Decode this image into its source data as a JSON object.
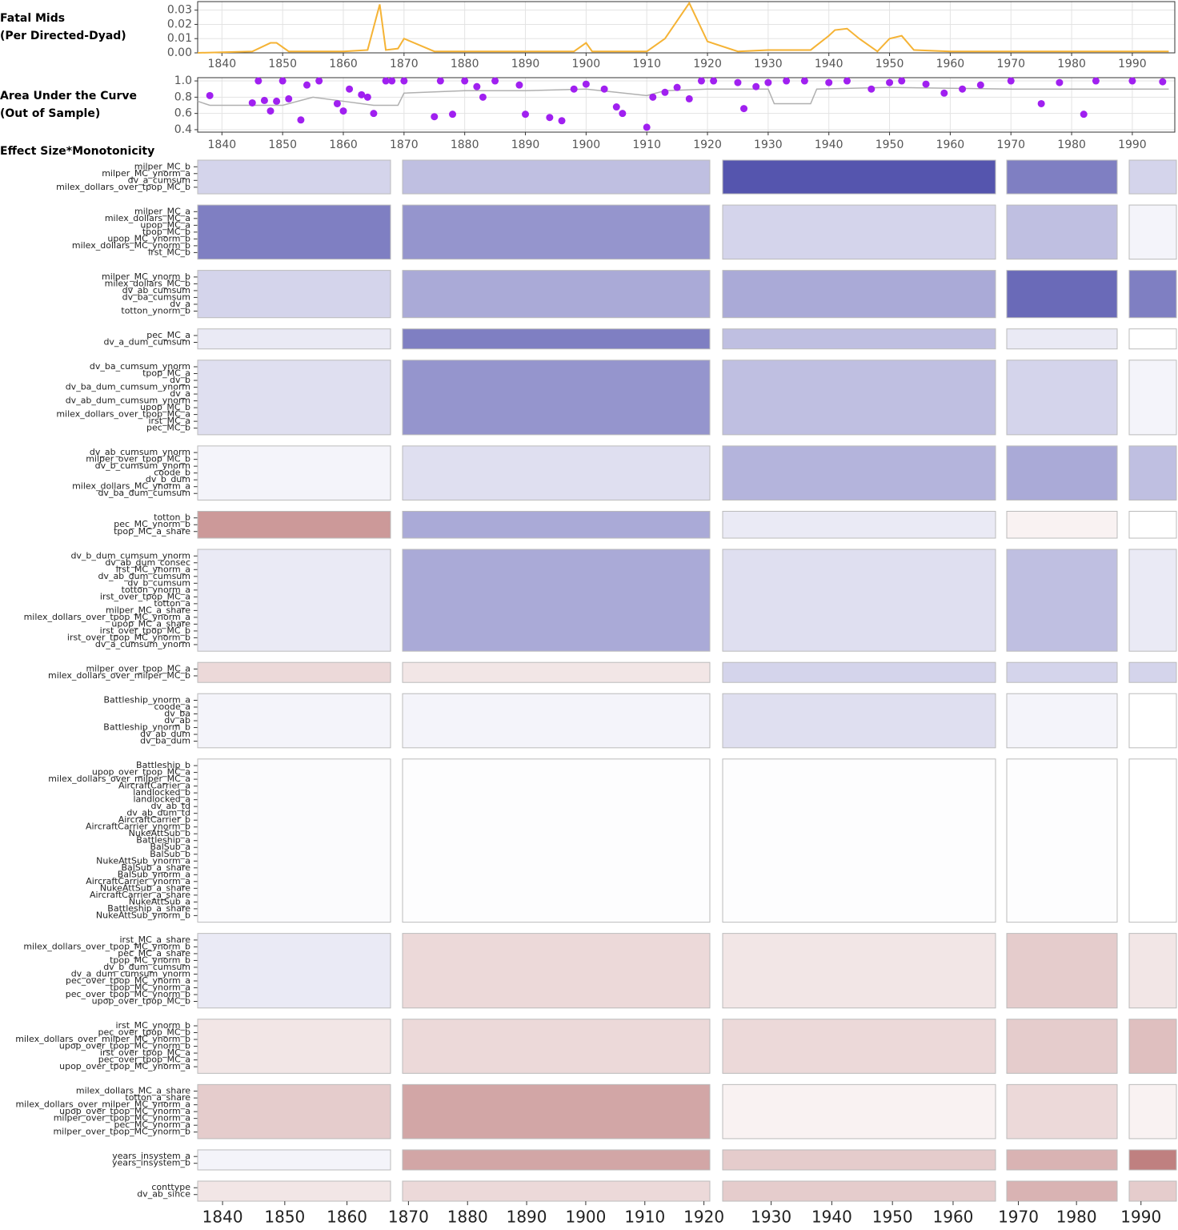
{
  "chart_data": [
    {
      "type": "line",
      "title": [
        "Fatal Mids",
        "(Per Directed-Dyad)"
      ],
      "color": "#f5b335",
      "grid": true,
      "x": [
        1836,
        1845,
        1848,
        1849,
        1851,
        1860,
        1864,
        1866,
        1867,
        1869,
        1870,
        1875,
        1880,
        1890,
        1898,
        1900,
        1901,
        1905,
        1910,
        1913,
        1917,
        1920,
        1925,
        1930,
        1937,
        1940,
        1941,
        1943,
        1945,
        1948,
        1950,
        1952,
        1954,
        1960,
        1970,
        1980,
        1990,
        1996
      ],
      "values": [
        0,
        0.001,
        0.007,
        0.007,
        0.001,
        0.001,
        0.002,
        0.034,
        0.002,
        0.003,
        0.01,
        0.001,
        0.001,
        0.001,
        0.001,
        0.007,
        0.001,
        0.001,
        0.001,
        0.01,
        0.035,
        0.008,
        0.001,
        0.002,
        0.002,
        0.012,
        0.016,
        0.017,
        0.01,
        0.001,
        0.01,
        0.012,
        0.002,
        0.001,
        0.001,
        0.001,
        0.001,
        0.001
      ],
      "xlim": [
        1836,
        1997
      ],
      "xticks": [
        1840,
        1850,
        1860,
        1870,
        1880,
        1890,
        1900,
        1910,
        1920,
        1930,
        1940,
        1950,
        1960,
        1970,
        1980,
        1990
      ],
      "ylim": [
        0,
        0.036
      ],
      "yticks": [
        {
          "value": 0,
          "label": "0.00"
        },
        {
          "value": 0.01,
          "label": "0.01"
        },
        {
          "value": 0.02,
          "label": "0.02"
        },
        {
          "value": 0.03,
          "label": "0.03"
        }
      ]
    },
    {
      "type": "scatter",
      "title": [
        "Area Under the Curve",
        "(Out of Sample)"
      ],
      "color": "#a020f0",
      "line_color": "#b0b0b0",
      "grid": true,
      "x": [
        1838,
        1845,
        1846,
        1847,
        1848,
        1849,
        1850,
        1851,
        1853,
        1854,
        1856,
        1859,
        1860,
        1861,
        1863,
        1864,
        1865,
        1867,
        1868,
        1870,
        1875,
        1876,
        1878,
        1880,
        1882,
        1883,
        1885,
        1889,
        1890,
        1894,
        1896,
        1898,
        1900,
        1903,
        1905,
        1906,
        1910,
        1911,
        1913,
        1915,
        1917,
        1919,
        1921,
        1925,
        1926,
        1928,
        1930,
        1933,
        1936,
        1940,
        1943,
        1947,
        1950,
        1952,
        1956,
        1959,
        1962,
        1965,
        1970,
        1975,
        1978,
        1982,
        1984,
        1990,
        1995
      ],
      "values": [
        0.82,
        0.73,
        1.0,
        0.76,
        0.63,
        0.75,
        1.0,
        0.78,
        0.52,
        0.95,
        1.0,
        0.72,
        0.63,
        0.9,
        0.83,
        0.8,
        0.6,
        1.0,
        1.0,
        1.0,
        0.56,
        1.0,
        0.59,
        1.0,
        0.93,
        0.8,
        1.0,
        0.95,
        0.59,
        0.55,
        0.51,
        0.9,
        0.96,
        0.9,
        0.68,
        0.6,
        0.43,
        0.8,
        0.86,
        0.92,
        0.78,
        1.0,
        1.0,
        0.98,
        0.66,
        0.93,
        0.98,
        1.0,
        1.0,
        0.98,
        1.0,
        0.9,
        0.98,
        1.0,
        0.96,
        0.85,
        0.9,
        0.95,
        1.0,
        0.72,
        0.98,
        0.59,
        1.0,
        1.0,
        0.99
      ],
      "line_x": [
        1836,
        1838,
        1845,
        1850,
        1855,
        1860,
        1865,
        1869,
        1870,
        1880,
        1890,
        1900,
        1910,
        1913,
        1920,
        1930,
        1931,
        1937,
        1938,
        1950,
        1970,
        1996
      ],
      "line_values": [
        0.75,
        0.7,
        0.7,
        0.7,
        0.8,
        0.75,
        0.7,
        0.7,
        0.85,
        0.88,
        0.88,
        0.9,
        0.82,
        0.88,
        0.9,
        0.9,
        0.72,
        0.72,
        0.9,
        0.92,
        0.9,
        0.9
      ],
      "xlim": [
        1836,
        1997
      ],
      "xticks": [
        1840,
        1850,
        1860,
        1870,
        1880,
        1890,
        1900,
        1910,
        1920,
        1930,
        1940,
        1950,
        1960,
        1970,
        1980,
        1990
      ],
      "ylim": [
        0.37,
        1.04
      ],
      "yticks": [
        0.4,
        0.6,
        0.8,
        {
          "value": 1,
          "label": "1.0"
        }
      ]
    },
    {
      "type": "heatmap",
      "title": "Effect Size*Monotonicity",
      "clim": [
        -1,
        1
      ],
      "low_color": "#7f0000",
      "mid_color": "#ffffff",
      "high_color": "#2a2a9a",
      "eras": [
        {
          "xlim": [
            1836,
            1867
          ],
          "xticks": [
            1840,
            1850,
            1860
          ]
        },
        {
          "xlim": [
            1869,
            1921
          ],
          "xticks": [
            1870,
            1880,
            1890,
            1900,
            1910,
            1920
          ]
        },
        {
          "xlim": [
            1922,
            1967
          ],
          "xticks": [
            1930,
            1940,
            1950,
            1960
          ]
        },
        {
          "xlim": [
            1968,
            1987
          ],
          "xticks": [
            1970,
            1980
          ]
        },
        {
          "xlim": [
            1988,
            1996
          ],
          "xticks": [
            1990
          ]
        }
      ],
      "groups": [
        {
          "rows": [
            "milper_MC_b",
            "milper_MC_ynorm_a",
            "dv_a_cumsum",
            "milex_dollars_over_tpop_MC_b"
          ],
          "values": [
            0.2,
            0.3,
            0.8,
            0.6,
            0.2
          ]
        },
        {
          "rows": [
            "milper_MC_a",
            "milex_dollars_MC_a",
            "upop_MC_a",
            "tpop_MC_b",
            "upop_MC_ynorm_b",
            "milex_dollars_MC_ynorm_b",
            "irst_MC_b"
          ],
          "values": [
            0.6,
            0.5,
            0.2,
            0.3,
            0.05
          ]
        },
        {
          "rows": [
            "milper_MC_ynorm_b",
            "milex_dollars_MC_b",
            "dv_ab_cumsum",
            "dv_ba_cumsum",
            "dv_a",
            "totton_ynorm_b"
          ],
          "values": [
            0.2,
            0.4,
            0.4,
            0.7,
            0.6
          ]
        },
        {
          "rows": [
            "pec_MC_a",
            "dv_a_dum_cumsum"
          ],
          "values": [
            0.1,
            0.6,
            0.3,
            0.1,
            0
          ]
        },
        {
          "rows": [
            "dv_ba_cumsum_ynorm",
            "tpop_MC_a",
            "dv_b",
            "dv_ba_dum_cumsum_ynorm",
            "dv_a",
            "dv_ab_dum_cumsum_ynorm",
            "upop_MC_b",
            "milex_dollars_over_tpop_MC_a",
            "irst_MC_a",
            "pec_MC_b"
          ],
          "values": [
            0.15,
            0.5,
            0.3,
            0.2,
            0.05
          ]
        },
        {
          "rows": [
            "dv_ab_cumsum_ynorm",
            "milper_over_tpop_MC_b",
            "dv_b_cumsum_ynorm",
            "coode_b",
            "dv_b_dum",
            "milex_dollars_MC_ynorm_a",
            "dv_ba_dum_cumsum"
          ],
          "values": [
            0.05,
            0.15,
            0.35,
            0.4,
            0.3
          ]
        },
        {
          "rows": [
            "totton_b",
            "pec_MC_ynorm_b",
            "tpop_MC_a_share"
          ],
          "values": [
            -0.4,
            0.4,
            0.1,
            -0.05,
            0
          ]
        },
        {
          "rows": [
            "dv_b_dum_cumsum_ynorm",
            "dv_ab_dum_consec",
            "irst_MC_ynorm_a",
            "dv_ab_dum_cumsum",
            "dv_b_cumsum",
            "totton_ynorm_a",
            "irst_over_tpop_MC_a",
            "totton_a",
            "milper_MC_a_share",
            "milex_dollars_over_tpop_MC_ynorm_a",
            "upop_MC_a_share",
            "irst_over_tpop_MC_b",
            "irst_over_tpop_MC_ynorm_b",
            "dv_a_cumsum_ynorm"
          ],
          "values": [
            0.1,
            0.4,
            0.15,
            0.3,
            0.1
          ]
        },
        {
          "rows": [
            "milper_over_tpop_MC_a",
            "milex_dollars_over_milper_MC_b"
          ],
          "values": [
            -0.15,
            -0.1,
            0.2,
            0.2,
            0.2
          ]
        },
        {
          "rows": [
            "Battleship_ynorm_a",
            "coode_a",
            "dv_ba",
            "dv_ab",
            "Battleship_ynorm_b",
            "dv_ab_dum",
            "dv_ba_dum"
          ],
          "values": [
            0.05,
            0.05,
            0.15,
            0.05,
            0
          ]
        },
        {
          "rows": [
            "Battleship_b",
            "upop_over_tpop_MC_a",
            "milex_dollars_over_milper_MC_a",
            "AircraftCarrier_a",
            "landlocked_b",
            "landlocked_a",
            "dv_ab_td",
            "dv_ab_dum_td",
            "AircraftCarrier_b",
            "AircraftCarrier_ynorm_b",
            "NukeAttSub_b",
            "Battleship_a",
            "BalSub_a",
            "BalSub_b",
            "NukeAttSub_ynorm_a",
            "BalSub_a_share",
            "BalSub_ynorm_a",
            "AircraftCarrier_ynorm_a",
            "NukeAttSub_a_share",
            "AircraftCarrier_a_share",
            "NukeAttSub_a",
            "Battleship_a_share",
            "NukeAttSub_ynorm_b"
          ],
          "values": [
            0.02,
            0.01,
            0.01,
            0.01,
            0
          ]
        },
        {
          "rows": [
            "irst_MC_a_share",
            "milex_dollars_over_tpop_MC_ynorm_b",
            "pec_MC_a_share",
            "tpop_MC_ynorm_b",
            "dv_b_dum_cumsum",
            "dv_a_dum_cumsum_ynorm",
            "pec_over_tpop_MC_ynorm_a",
            "tpop_MC_ynorm_a",
            "pec_over_tpop_MC_ynorm_b",
            "upop_over_tpop_MC_b"
          ],
          "values": [
            0.1,
            -0.15,
            -0.1,
            -0.2,
            -0.1
          ]
        },
        {
          "rows": [
            "irst_MC_ynorm_b",
            "pec_over_tpop_MC_b",
            "milex_dollars_over_milper_MC_ynorm_b",
            "upop_over_tpop_MC_ynorm_b",
            "irst_over_tpop_MC_a",
            "pec_over_tpop_MC_a",
            "upop_over_tpop_MC_ynorm_a"
          ],
          "values": [
            -0.1,
            -0.15,
            -0.15,
            -0.2,
            -0.25
          ]
        },
        {
          "rows": [
            "milex_dollars_MC_a_share",
            "totton_a_share",
            "milex_dollars_over_milper_MC_ynorm_a",
            "upop_over_tpop_MC_ynorm_a",
            "milper_over_tpop_MC_ynorm_a",
            "pec_MC_ynorm_a",
            "milper_over_tpop_MC_ynorm_b"
          ],
          "values": [
            -0.2,
            -0.35,
            -0.05,
            -0.15,
            -0.05
          ]
        },
        {
          "rows": [
            "years_insystem_a",
            "years_insystem_b"
          ],
          "values": [
            0.05,
            -0.35,
            -0.2,
            -0.3,
            -0.5
          ]
        },
        {
          "rows": [
            "conttype",
            "dv_ab_since"
          ],
          "values": [
            -0.1,
            -0.15,
            -0.2,
            -0.3,
            -0.2
          ]
        }
      ]
    }
  ]
}
